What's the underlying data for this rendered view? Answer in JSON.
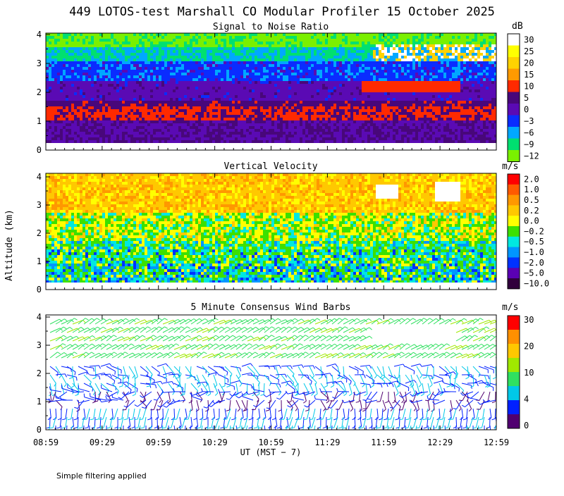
{
  "title": "449 LOTOS-test Marshall CO Modular Profiler 15 October 2025",
  "footnote": "Simple filtering applied",
  "chart_data": [
    {
      "type": "heatmap",
      "title": "Signal to Noise Ratio",
      "ylabel": "",
      "ylim": [
        0,
        4
      ],
      "yticks": [
        "0",
        "1",
        "2",
        "3",
        "4"
      ],
      "colorbar_unit": "dB",
      "colorbar_labels": [
        "30",
        "25",
        "20",
        "15",
        "10",
        "5",
        "0",
        "−3",
        "−6",
        "−9",
        "−12"
      ],
      "colorbar_colors": [
        "#ffffff",
        "#ffff00",
        "#ffd200",
        "#ff9a00",
        "#ff2a00",
        "#48077a",
        "#5a0ab4",
        "#0a2cff",
        "#00a8ff",
        "#00e070",
        "#7af000"
      ]
    },
    {
      "type": "heatmap",
      "title": "Vertical Velocity",
      "ylabel": "Altitude (km)",
      "ylim": [
        0,
        4
      ],
      "yticks": [
        "0",
        "1",
        "2",
        "3",
        "4"
      ],
      "colorbar_unit": "m/s",
      "colorbar_labels": [
        "2.0",
        "1.0",
        "0.5",
        "0.2",
        "0.0",
        "−0.2",
        "−0.5",
        "−1.0",
        "−2.0",
        "−5.0",
        "−10.0"
      ],
      "colorbar_colors": [
        "#ff0000",
        "#ff5a00",
        "#ff9800",
        "#ffc800",
        "#ffff00",
        "#3ce000",
        "#00e8e0",
        "#0096ff",
        "#0032ff",
        "#5a00b4",
        "#30003c"
      ]
    },
    {
      "type": "scatter",
      "title": "5 Minute Consensus Wind Barbs",
      "ylabel": "",
      "ylim": [
        0,
        4
      ],
      "yticks": [
        "0",
        "1",
        "2",
        "3",
        "4"
      ],
      "colorbar_unit": "m/s",
      "colorbar_labels": [
        "30",
        "20",
        "10",
        "4",
        "0"
      ],
      "colorbar_colors": [
        "#ff0000",
        "#ff9000",
        "#ffc800",
        "#a0e800",
        "#30e060",
        "#00c8e8",
        "#0020ff",
        "#500070"
      ],
      "x": [
        "08:59",
        "09:29",
        "09:59",
        "10:29",
        "10:59",
        "11:29",
        "11:59",
        "12:29",
        "12:59"
      ],
      "xlabel": "UT  (MST − 7)"
    }
  ]
}
